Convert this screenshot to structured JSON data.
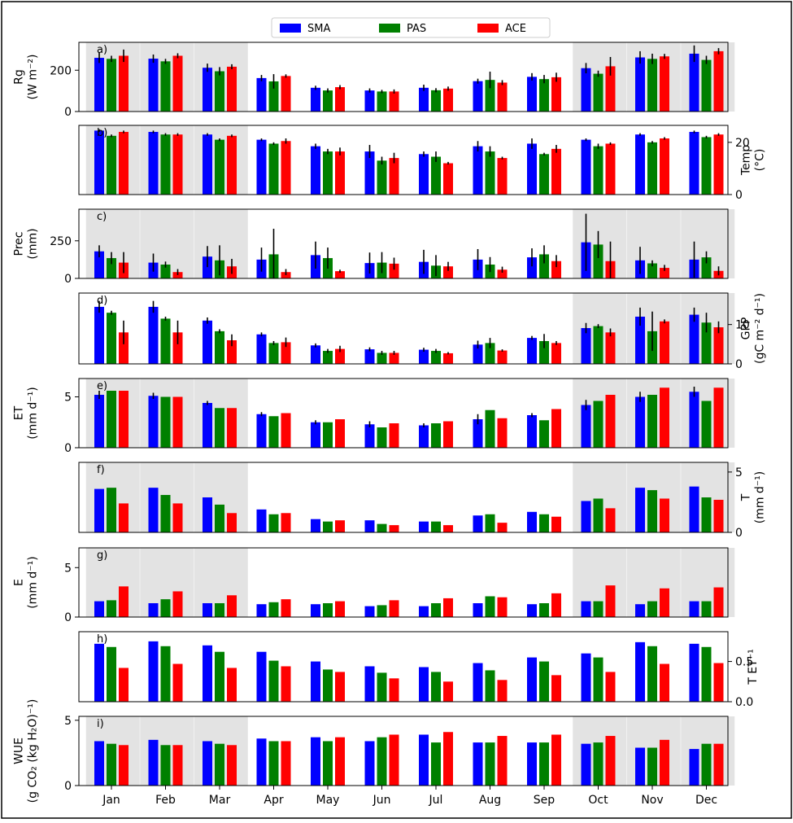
{
  "legend": {
    "placement": "top-center",
    "items": [
      {
        "label": "SMA",
        "color": "#0000ff"
      },
      {
        "label": "PAS",
        "color": "#008000"
      },
      {
        "label": "ACE",
        "color": "#ff0000"
      }
    ]
  },
  "colors": {
    "SMA": "#0000ff",
    "PAS": "#008000",
    "ACE": "#ff0000",
    "shade": "#e3e3e3"
  },
  "months": [
    "Jan",
    "Feb",
    "Mar",
    "Apr",
    "May",
    "Jun",
    "Jul",
    "Aug",
    "Sep",
    "Oct",
    "Nov",
    "Dec"
  ],
  "shaded_months": [
    "Jan",
    "Feb",
    "Mar",
    "Oct",
    "Nov",
    "Dec"
  ],
  "chart_data": [
    {
      "type": "bar",
      "panel_label": "a)",
      "axis_side": "left",
      "ylabel_lines": [
        "Rg",
        "(W m⁻²)"
      ],
      "ylim": [
        0,
        335
      ],
      "yticks": [
        0,
        200
      ],
      "ytick_labels": [
        "0",
        "200"
      ],
      "shaded": [
        "Jan",
        "Feb",
        "Mar",
        "Oct",
        "Nov",
        "Dec"
      ],
      "series": [
        {
          "name": "SMA",
          "values": [
            260,
            256,
            212,
            162,
            115,
            102,
            115,
            147,
            168,
            210,
            262,
            280
          ],
          "err": [
            25,
            20,
            20,
            15,
            10,
            10,
            15,
            12,
            18,
            25,
            30,
            40
          ]
        },
        {
          "name": "PAS",
          "values": [
            255,
            243,
            195,
            146,
            102,
            97,
            103,
            153,
            157,
            183,
            255,
            250
          ],
          "err": [
            15,
            12,
            20,
            35,
            10,
            8,
            10,
            40,
            20,
            15,
            25,
            20
          ]
        },
        {
          "name": "ACE",
          "values": [
            270,
            270,
            217,
            172,
            118,
            97,
            111,
            140,
            166,
            219,
            267,
            292
          ],
          "err": [
            30,
            12,
            12,
            8,
            10,
            10,
            10,
            12,
            22,
            45,
            12,
            15
          ]
        }
      ]
    },
    {
      "type": "bar",
      "panel_label": "b)",
      "axis_side": "right",
      "ylabel_lines": [
        "Temp",
        "(°C)"
      ],
      "ylim": [
        0,
        26.5
      ],
      "yticks": [
        0,
        20
      ],
      "ytick_labels": [
        "0",
        "20"
      ],
      "shaded": [
        "Jan",
        "Feb",
        "Mar"
      ],
      "series": [
        {
          "name": "SMA",
          "values": [
            24.5,
            24,
            23,
            21,
            18.5,
            16.5,
            15.5,
            18.5,
            19.5,
            21,
            23,
            24
          ],
          "err": [
            0.5,
            0.5,
            0.5,
            0.5,
            1,
            2.5,
            1,
            2,
            2,
            0.5,
            0.5,
            0.5
          ]
        },
        {
          "name": "PAS",
          "values": [
            22.5,
            23,
            21,
            19.5,
            16.5,
            13,
            14.5,
            16.5,
            15.5,
            18.5,
            20,
            22
          ],
          "err": [
            0.5,
            0.5,
            0.5,
            0.5,
            1,
            1.5,
            2,
            2,
            0.5,
            1,
            0.5,
            0.5
          ]
        },
        {
          "name": "ACE",
          "values": [
            24,
            23,
            22.5,
            20.5,
            16.5,
            14,
            12,
            14,
            17.5,
            19.5,
            21.5,
            23
          ],
          "err": [
            0.5,
            0.5,
            0.5,
            1,
            1.5,
            2,
            0.5,
            0.5,
            1.5,
            0.5,
            0.5,
            0.5
          ]
        }
      ]
    },
    {
      "type": "bar",
      "panel_label": "c)",
      "axis_side": "left",
      "ylabel_lines": [
        "Prec",
        "(mm)"
      ],
      "ylim": [
        0,
        460
      ],
      "yticks": [
        0,
        250
      ],
      "ytick_labels": [
        "0",
        "250"
      ],
      "shaded": [
        "Jan",
        "Feb",
        "Mar",
        "Oct",
        "Nov",
        "Dec"
      ],
      "series": [
        {
          "name": "SMA",
          "values": [
            180,
            105,
            145,
            125,
            155,
            102,
            110,
            125,
            140,
            240,
            120,
            125
          ],
          "err": [
            40,
            60,
            70,
            80,
            90,
            70,
            80,
            70,
            60,
            190,
            90,
            120
          ]
        },
        {
          "name": "PAS",
          "values": [
            135,
            92,
            120,
            160,
            135,
            105,
            85,
            92,
            160,
            225,
            100,
            140
          ],
          "err": [
            40,
            20,
            100,
            170,
            70,
            70,
            70,
            50,
            60,
            90,
            20,
            40
          ]
        },
        {
          "name": "ACE",
          "values": [
            105,
            42,
            80,
            42,
            48,
            98,
            80,
            58,
            115,
            115,
            70,
            50
          ],
          "err": [
            70,
            20,
            50,
            20,
            10,
            40,
            30,
            20,
            40,
            130,
            20,
            30
          ]
        }
      ]
    },
    {
      "type": "bar",
      "panel_label": "d)",
      "axis_side": "right",
      "ylabel_lines": [
        "GPP",
        "(gC m⁻² d⁻¹)"
      ],
      "ylim": [
        0,
        18
      ],
      "yticks": [
        0,
        10
      ],
      "ytick_labels": [
        "0",
        "10"
      ],
      "shaded": [
        "Oct",
        "Nov",
        "Dec"
      ],
      "series": [
        {
          "name": "SMA",
          "values": [
            14.5,
            14.5,
            11,
            7.5,
            4.7,
            3.7,
            3.6,
            4.9,
            6.6,
            9.1,
            12,
            12.5
          ],
          "err": [
            1.5,
            1.5,
            0.8,
            0.5,
            0.5,
            0.5,
            0.5,
            1,
            0.5,
            1.3,
            2.3,
            1.8
          ]
        },
        {
          "name": "PAS",
          "values": [
            13,
            11.5,
            8.3,
            5.3,
            3.3,
            2.8,
            3.3,
            5.3,
            5.8,
            9.6,
            8.3,
            10.5
          ],
          "err": [
            0.5,
            0.5,
            0.5,
            0.5,
            0.5,
            0.5,
            0.5,
            1.3,
            1.8,
            0.5,
            5,
            2.5
          ]
        },
        {
          "name": "ACE",
          "values": [
            8,
            8,
            6,
            5.5,
            3.8,
            2.8,
            2.7,
            3.4,
            5.3,
            8,
            10.8,
            9.3
          ],
          "err": [
            3,
            3,
            1.5,
            1.2,
            0.8,
            0.5,
            0.3,
            0.3,
            0.5,
            1,
            0.5,
            1.5
          ]
        }
      ]
    },
    {
      "type": "bar",
      "panel_label": "e)",
      "axis_side": "left",
      "ylabel_lines": [
        "ET",
        "(mm d⁻¹)"
      ],
      "ylim": [
        0,
        6.8
      ],
      "yticks": [
        0,
        5
      ],
      "ytick_labels": [
        "0",
        "5"
      ],
      "shaded": [
        "Jan",
        "Feb",
        "Mar",
        "Oct",
        "Nov",
        "Dec"
      ],
      "series": [
        {
          "name": "SMA",
          "values": [
            5.2,
            5.1,
            4.4,
            3.3,
            2.5,
            2.3,
            2.2,
            2.8,
            3.2,
            4.2,
            5,
            5.5
          ],
          "err": [
            0.4,
            0.3,
            0.2,
            0.2,
            0.2,
            0.3,
            0.2,
            0.5,
            0.2,
            0.5,
            0.5,
            0.5
          ]
        },
        {
          "name": "PAS",
          "values": [
            5.6,
            5,
            3.9,
            3.1,
            2.5,
            2,
            2.4,
            3.7,
            2.7,
            4.6,
            5.2,
            4.6
          ]
        },
        {
          "name": "ACE",
          "values": [
            5.6,
            5,
            3.9,
            3.4,
            2.8,
            2.4,
            2.6,
            2.9,
            3.8,
            5.2,
            5.9,
            5.9
          ]
        }
      ]
    },
    {
      "type": "bar",
      "panel_label": "f)",
      "axis_side": "right",
      "ylabel_lines": [
        "T",
        "(mm d⁻¹)"
      ],
      "ylim": [
        0,
        5.8
      ],
      "yticks": [
        0,
        5
      ],
      "ytick_labels": [
        "0",
        "5"
      ],
      "shaded": [
        "Jan",
        "Feb",
        "Mar",
        "Oct",
        "Nov",
        "Dec"
      ],
      "series": [
        {
          "name": "SMA",
          "values": [
            3.6,
            3.7,
            2.9,
            1.9,
            1.1,
            1,
            0.9,
            1.4,
            1.7,
            2.6,
            3.7,
            3.8
          ]
        },
        {
          "name": "PAS",
          "values": [
            3.7,
            3.1,
            2.3,
            1.5,
            0.9,
            0.7,
            0.9,
            1.5,
            1.5,
            2.8,
            3.5,
            2.9
          ]
        },
        {
          "name": "ACE",
          "values": [
            2.4,
            2.4,
            1.6,
            1.6,
            1,
            0.6,
            0.6,
            0.8,
            1.3,
            2,
            2.8,
            2.7
          ]
        }
      ]
    },
    {
      "type": "bar",
      "panel_label": "g)",
      "axis_side": "left",
      "ylabel_lines": [
        "E",
        "(mm d⁻¹)"
      ],
      "ylim": [
        0,
        7
      ],
      "yticks": [
        0,
        5
      ],
      "ytick_labels": [
        "0",
        "5"
      ],
      "shaded": [
        "Jan",
        "Feb",
        "Mar",
        "Oct",
        "Nov",
        "Dec"
      ],
      "series": [
        {
          "name": "SMA",
          "values": [
            1.6,
            1.4,
            1.4,
            1.3,
            1.3,
            1.1,
            1.1,
            1.4,
            1.3,
            1.6,
            1.3,
            1.6
          ]
        },
        {
          "name": "PAS",
          "values": [
            1.7,
            1.8,
            1.4,
            1.5,
            1.4,
            1.2,
            1.4,
            2.1,
            1.4,
            1.6,
            1.6,
            1.6
          ]
        },
        {
          "name": "ACE",
          "values": [
            3.1,
            2.6,
            2.2,
            1.8,
            1.6,
            1.7,
            1.9,
            2,
            2.4,
            3.2,
            2.9,
            3
          ]
        }
      ]
    },
    {
      "type": "bar",
      "panel_label": "h)",
      "axis_side": "right",
      "ylabel_lines": [
        "T ET⁻¹"
      ],
      "ylim": [
        0,
        0.87
      ],
      "yticks": [
        0,
        0.5
      ],
      "ytick_labels": [
        "0.0",
        "0.5"
      ],
      "shaded": [],
      "series": [
        {
          "name": "SMA",
          "values": [
            0.72,
            0.75,
            0.7,
            0.62,
            0.5,
            0.44,
            0.43,
            0.48,
            0.55,
            0.6,
            0.74,
            0.72
          ]
        },
        {
          "name": "PAS",
          "values": [
            0.68,
            0.69,
            0.62,
            0.51,
            0.4,
            0.36,
            0.37,
            0.39,
            0.5,
            0.55,
            0.69,
            0.68
          ]
        },
        {
          "name": "ACE",
          "values": [
            0.42,
            0.47,
            0.42,
            0.44,
            0.37,
            0.29,
            0.25,
            0.27,
            0.33,
            0.37,
            0.47,
            0.48
          ]
        }
      ]
    },
    {
      "type": "bar",
      "panel_label": "i)",
      "axis_side": "left",
      "ylabel_lines": [
        "WUE",
        "(g CO₂ (kg H₂O)⁻¹)"
      ],
      "ylim": [
        0,
        5.3
      ],
      "yticks": [
        0,
        5
      ],
      "ytick_labels": [
        "0",
        "5"
      ],
      "shaded": [
        "Jan",
        "Feb",
        "Mar",
        "Oct",
        "Nov",
        "Dec"
      ],
      "series": [
        {
          "name": "SMA",
          "values": [
            3.4,
            3.5,
            3.4,
            3.6,
            3.7,
            3.4,
            3.9,
            3.3,
            3.3,
            3.2,
            2.9,
            2.8
          ]
        },
        {
          "name": "PAS",
          "values": [
            3.2,
            3.1,
            3.2,
            3.4,
            3.4,
            3.7,
            3.3,
            3.3,
            3.3,
            3.3,
            2.9,
            3.2
          ]
        },
        {
          "name": "ACE",
          "values": [
            3.1,
            3.1,
            3.1,
            3.4,
            3.7,
            3.9,
            4.1,
            3.8,
            3.9,
            3.8,
            3.5,
            3.2
          ]
        }
      ]
    }
  ]
}
